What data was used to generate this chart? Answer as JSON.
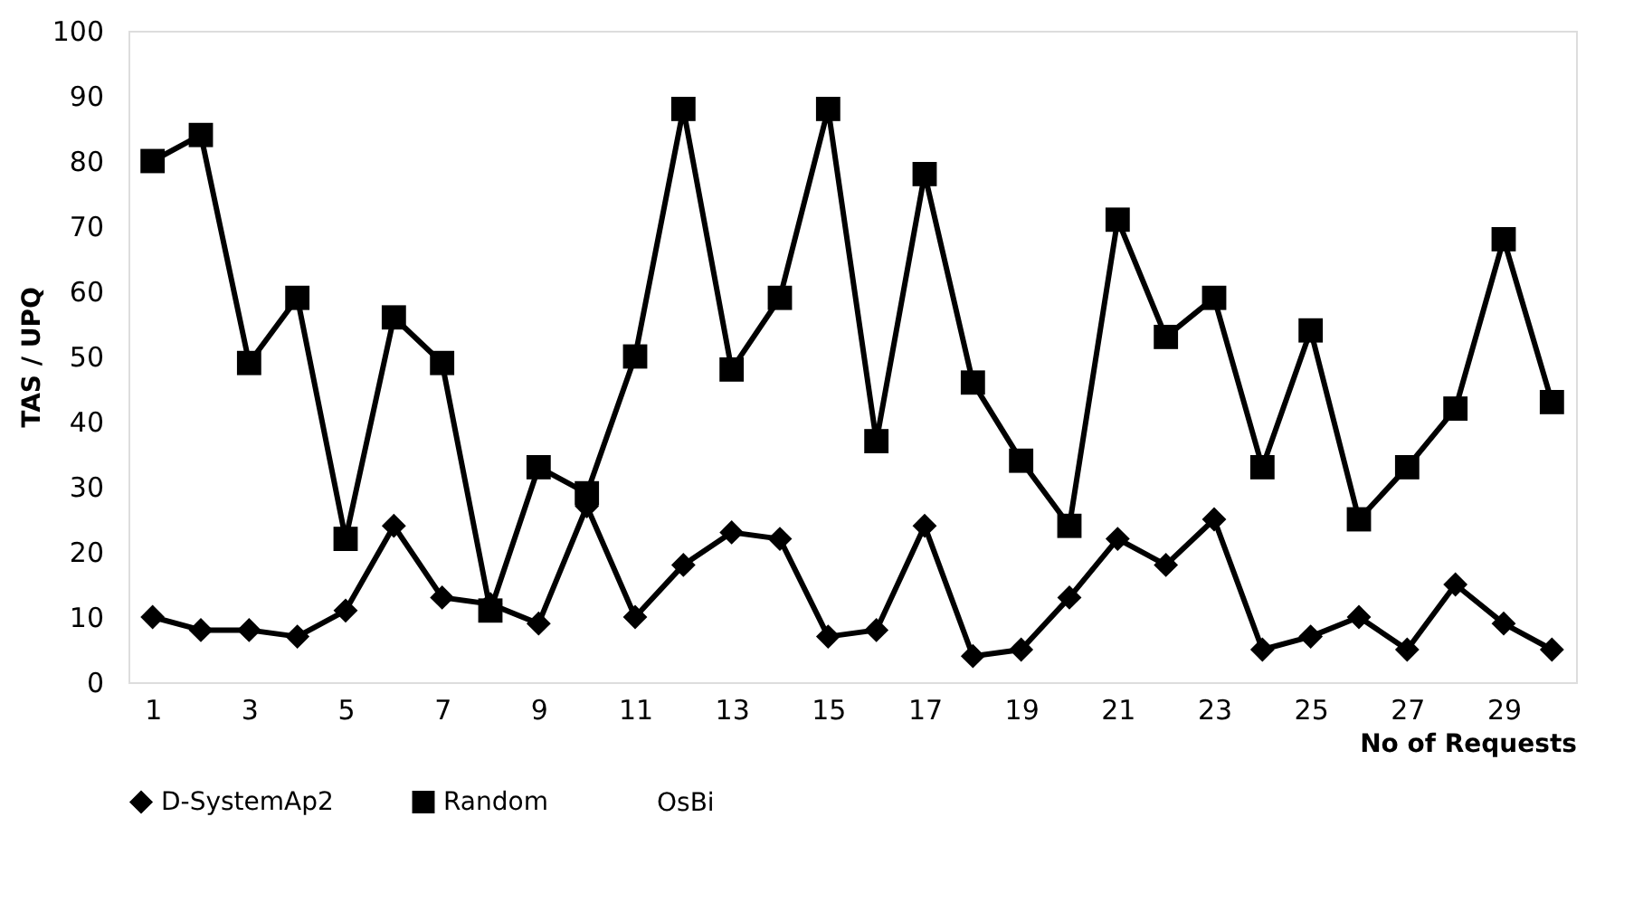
{
  "chart_data": {
    "type": "line",
    "xlabel": "No of Requests",
    "ylabel": "TAS / UPQ",
    "x": [
      1,
      2,
      3,
      4,
      5,
      6,
      7,
      8,
      9,
      10,
      11,
      12,
      13,
      14,
      15,
      16,
      17,
      18,
      19,
      20,
      21,
      22,
      23,
      24,
      25,
      26,
      27,
      28,
      29,
      30
    ],
    "xlim": [
      0.5,
      30.5
    ],
    "xticks": [
      1,
      3,
      5,
      7,
      9,
      11,
      13,
      15,
      17,
      19,
      21,
      23,
      25,
      27,
      29
    ],
    "ylim": [
      0,
      100
    ],
    "yticks": [
      0,
      10,
      20,
      30,
      40,
      50,
      60,
      70,
      80,
      90,
      100
    ],
    "grid": false,
    "legend": "bottom",
    "line_style": "solid",
    "series": [
      {
        "name": "D-SystemAp2",
        "color": "#000000",
        "marker": "diamond",
        "values": [
          10,
          8,
          8,
          7,
          11,
          24,
          13,
          12,
          9,
          27,
          10,
          18,
          23,
          22,
          7,
          8,
          24,
          4,
          5,
          13,
          22,
          18,
          25,
          5,
          7,
          10,
          5,
          15,
          9,
          5
        ]
      },
      {
        "name": "Random",
        "color": "#000000",
        "marker": "square",
        "values": [
          80,
          84,
          49,
          59,
          22,
          56,
          49,
          11,
          33,
          29,
          50,
          88,
          48,
          59,
          88,
          37,
          78,
          46,
          34,
          24,
          71,
          53,
          59,
          33,
          54,
          25,
          33,
          42,
          68,
          43
        ]
      },
      {
        "name": "OsBi",
        "marker": "none",
        "values": [
          null,
          null,
          null,
          null,
          null,
          null,
          null,
          null,
          null,
          null,
          null,
          null,
          null,
          null,
          null,
          null,
          null,
          null,
          null,
          null,
          null,
          null,
          null,
          null,
          null,
          null,
          null,
          null,
          null,
          null
        ]
      }
    ]
  }
}
